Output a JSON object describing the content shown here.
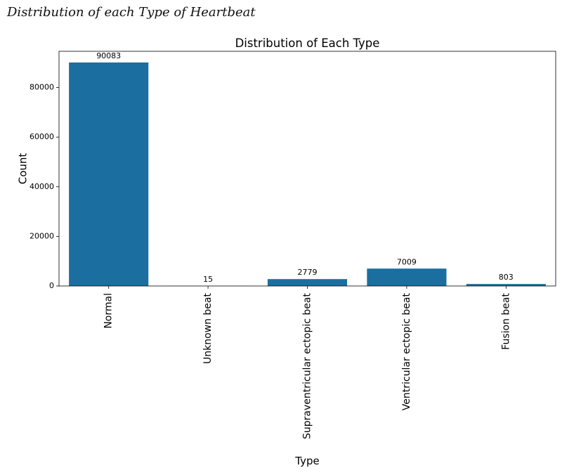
{
  "page": {
    "heading": "Distribution of each Type of Heartbeat"
  },
  "chart_data": {
    "type": "bar",
    "title": "Distribution of Each Type",
    "xlabel": "Type",
    "ylabel": "Count",
    "categories": [
      "Normal",
      "Unknown beat",
      "Supraventricular ectopic beat",
      "Ventricular ectopic beat",
      "Fusion beat"
    ],
    "values": [
      90083,
      15,
      2779,
      7009,
      803
    ],
    "data_labels": [
      "90083",
      "15",
      "2779",
      "7009",
      "803"
    ],
    "yticks": [
      0,
      20000,
      40000,
      60000,
      80000
    ],
    "ytick_labels": [
      "0",
      "20000",
      "40000",
      "60000",
      "80000"
    ],
    "ylim": [
      0,
      94587
    ],
    "bar_color": "#1a6fa0",
    "grid": false,
    "legend": "none"
  }
}
